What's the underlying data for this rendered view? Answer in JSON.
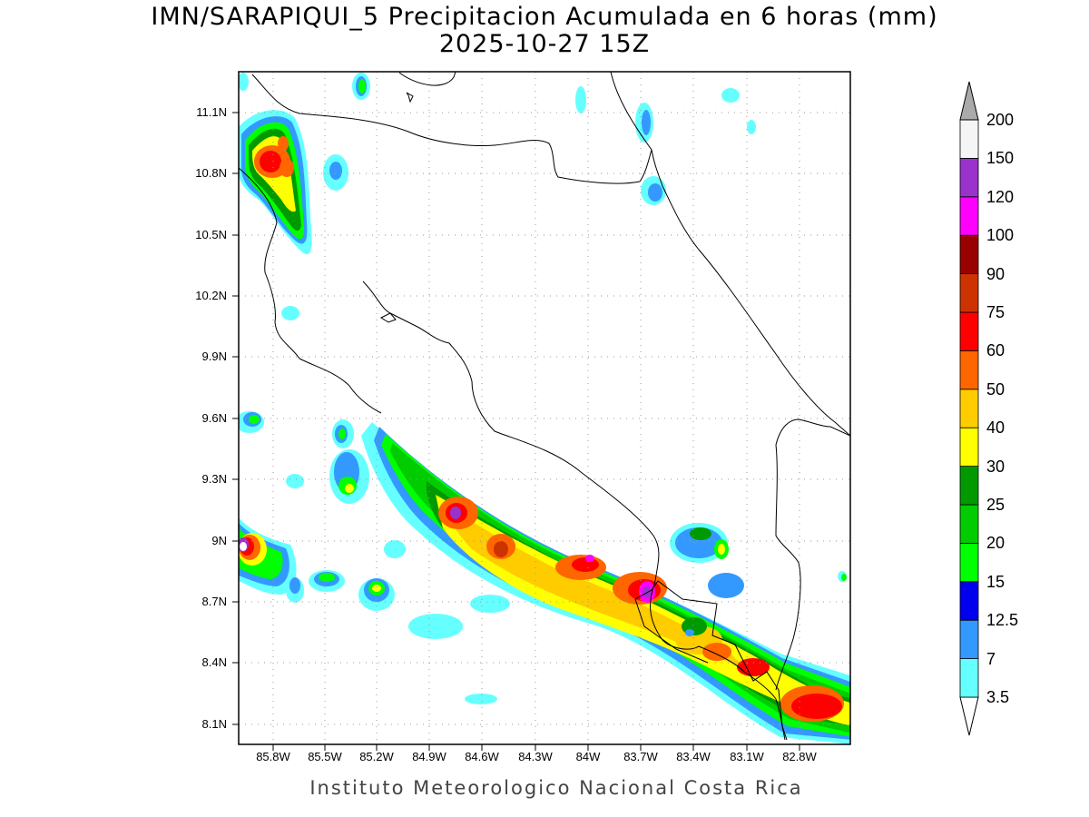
{
  "map": {
    "title_line1": "IMN/SARAPIQUI_5 Precipitacion Acumulada en 6 horas (mm)",
    "title_line2": "2025-10-27 15Z",
    "footer": "Instituto Meteorologico Nacional Costa Rica",
    "lat_labels": [
      "11.1N",
      "10.8N",
      "10.5N",
      "10.2N",
      "9.9N",
      "9.6N",
      "9.3N",
      "9N",
      "8.7N",
      "8.4N",
      "8.1N"
    ],
    "lon_labels": [
      "85.8W",
      "85.5W",
      "85.2W",
      "84.9W",
      "84.6W",
      "84.3W",
      "84W",
      "83.7W",
      "83.4W",
      "83.1W",
      "82.8W"
    ],
    "grid": true
  },
  "colorbar": {
    "labels": [
      "3.5",
      "7",
      "12.5",
      "15",
      "20",
      "25",
      "30",
      "40",
      "50",
      "60",
      "75",
      "90",
      "100",
      "120",
      "150",
      "200"
    ],
    "colors": [
      "#ffffff",
      "#66ffff",
      "#3399ff",
      "#0000ee",
      "#00ff00",
      "#00cc00",
      "#009900",
      "#ffff00",
      "#ffcc00",
      "#ff6600",
      "#ff0000",
      "#cc3300",
      "#990000",
      "#ff00ff",
      "#9933cc",
      "#f5f5f5",
      "#aaaaaa"
    ]
  }
}
